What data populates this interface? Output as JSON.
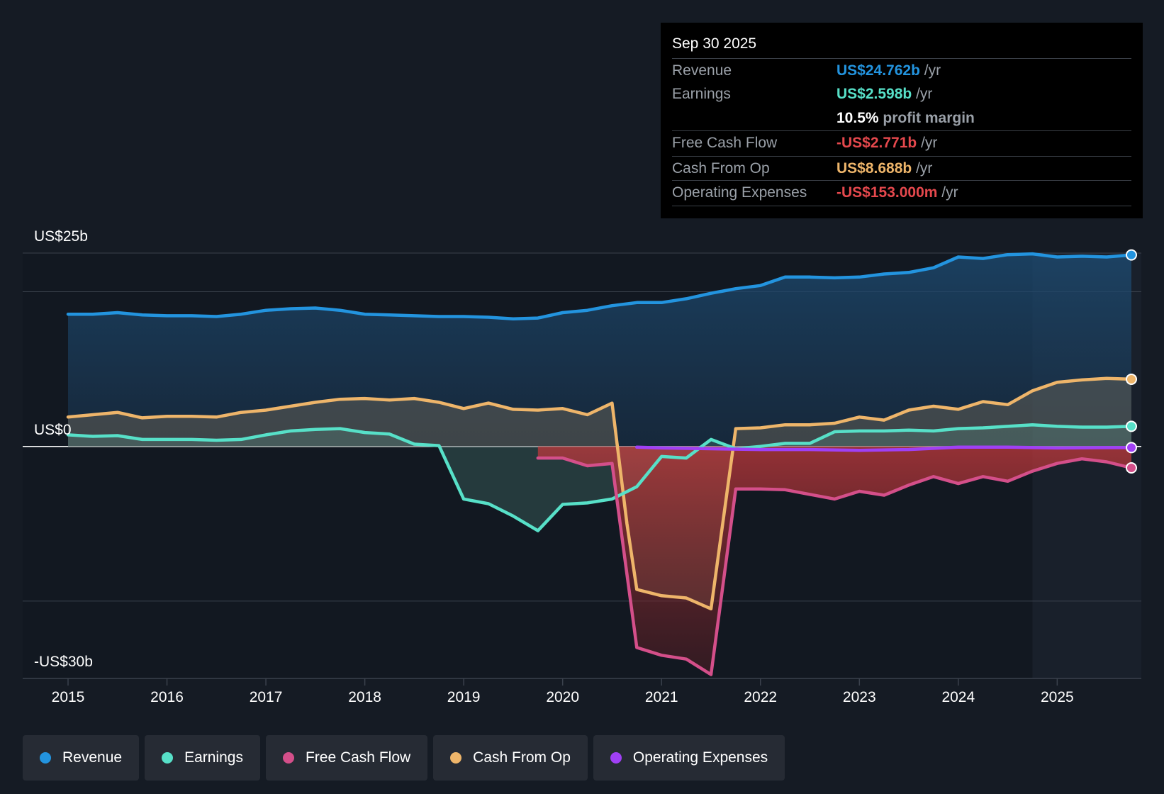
{
  "chart_data": {
    "type": "line",
    "title": "",
    "y_axis": {
      "top_label": "US$25b",
      "zero_label": "US$0",
      "bottom_label": "-US$30b",
      "ylim": [
        -30,
        25
      ]
    },
    "x_ticks": [
      "2015",
      "2016",
      "2017",
      "2018",
      "2019",
      "2020",
      "2021",
      "2022",
      "2023",
      "2024",
      "2025"
    ],
    "xlim": [
      2014.55,
      2025.75
    ],
    "forecast_start": 2024.75,
    "series": [
      {
        "name": "Revenue",
        "key": "revenue",
        "color": "#2394df",
        "x": [
          2015.0,
          2015.25,
          2015.5,
          2015.75,
          2016.0,
          2016.25,
          2016.5,
          2016.75,
          2017.0,
          2017.25,
          2017.5,
          2017.75,
          2018.0,
          2018.25,
          2018.5,
          2018.75,
          2019.0,
          2019.25,
          2019.5,
          2019.75,
          2020.0,
          2020.25,
          2020.5,
          2020.75,
          2021.0,
          2021.25,
          2021.5,
          2021.75,
          2022.0,
          2022.25,
          2022.5,
          2022.75,
          2023.0,
          2023.25,
          2023.5,
          2023.75,
          2024.0,
          2024.25,
          2024.5,
          2024.75,
          2025.0,
          2025.25,
          2025.5,
          2025.75
        ],
        "y": [
          17.1,
          17.1,
          17.3,
          17.0,
          16.9,
          16.9,
          16.8,
          17.1,
          17.6,
          17.8,
          17.9,
          17.6,
          17.1,
          17.0,
          16.9,
          16.8,
          16.8,
          16.7,
          16.5,
          16.6,
          17.3,
          17.6,
          18.2,
          18.6,
          18.6,
          19.1,
          19.8,
          20.4,
          20.8,
          21.9,
          21.9,
          21.8,
          21.9,
          22.3,
          22.5,
          23.1,
          24.5,
          24.3,
          24.8,
          24.9,
          24.5,
          24.6,
          24.5,
          24.762
        ]
      },
      {
        "name": "Earnings",
        "key": "earnings",
        "color": "#57e0c8",
        "x": [
          2015.0,
          2015.25,
          2015.5,
          2015.75,
          2016.0,
          2016.25,
          2016.5,
          2016.75,
          2017.0,
          2017.25,
          2017.5,
          2017.75,
          2018.0,
          2018.25,
          2018.5,
          2018.75,
          2019.0,
          2019.25,
          2019.5,
          2019.75,
          2020.0,
          2020.25,
          2020.5,
          2020.75,
          2021.0,
          2021.25,
          2021.5,
          2021.75,
          2022.0,
          2022.25,
          2022.5,
          2022.75,
          2023.0,
          2023.25,
          2023.5,
          2023.75,
          2024.0,
          2024.25,
          2024.5,
          2024.75,
          2025.0,
          2025.25,
          2025.5,
          2025.75
        ],
        "y": [
          1.5,
          1.3,
          1.4,
          0.9,
          0.9,
          0.9,
          0.8,
          0.9,
          1.5,
          2.0,
          2.2,
          2.3,
          1.8,
          1.6,
          0.3,
          0.1,
          -6.8,
          -7.4,
          -9.0,
          -10.9,
          -7.5,
          -7.3,
          -6.8,
          -5.2,
          -1.3,
          -1.5,
          0.9,
          -0.3,
          0.0,
          0.4,
          0.4,
          1.9,
          2.0,
          2.0,
          2.1,
          2.0,
          2.3,
          2.4,
          2.6,
          2.8,
          2.6,
          2.5,
          2.5,
          2.598
        ]
      },
      {
        "name": "Free Cash Flow",
        "key": "fcf",
        "color": "#d44f8a",
        "x": [
          2019.75,
          2020.0,
          2020.25,
          2020.5,
          2020.75,
          2021.0,
          2021.25,
          2021.5,
          2021.75,
          2022.0,
          2022.25,
          2022.5,
          2022.75,
          2023.0,
          2023.25,
          2023.5,
          2023.75,
          2024.0,
          2024.25,
          2024.5,
          2024.75,
          2025.0,
          2025.25,
          2025.5,
          2025.75
        ],
        "y": [
          -1.5,
          -1.5,
          -2.5,
          -2.2,
          -26.0,
          -27.0,
          -27.5,
          -29.5,
          -5.5,
          -5.5,
          -5.6,
          -6.2,
          -6.8,
          -5.8,
          -6.3,
          -5.0,
          -3.9,
          -4.8,
          -3.9,
          -4.5,
          -3.2,
          -2.2,
          -1.6,
          -2.0,
          -2.771
        ]
      },
      {
        "name": "Cash From Op",
        "key": "cfo",
        "color": "#eeb56a",
        "x": [
          2015.0,
          2015.25,
          2015.5,
          2015.75,
          2016.0,
          2016.25,
          2016.5,
          2016.75,
          2017.0,
          2017.25,
          2017.5,
          2017.75,
          2018.0,
          2018.25,
          2018.5,
          2018.75,
          2019.0,
          2019.25,
          2019.5,
          2019.75,
          2020.0,
          2020.25,
          2020.5,
          2020.65,
          2020.75,
          2021.0,
          2021.25,
          2021.5,
          2021.75,
          2022.0,
          2022.25,
          2022.5,
          2022.75,
          2023.0,
          2023.25,
          2023.5,
          2023.75,
          2024.0,
          2024.25,
          2024.5,
          2024.75,
          2025.0,
          2025.25,
          2025.5,
          2025.75
        ],
        "y": [
          3.8,
          4.1,
          4.4,
          3.7,
          3.9,
          3.9,
          3.8,
          4.4,
          4.7,
          5.2,
          5.7,
          6.1,
          6.2,
          6.0,
          6.2,
          5.7,
          4.9,
          5.6,
          4.8,
          4.7,
          4.9,
          4.1,
          5.6,
          -10.0,
          -18.5,
          -19.3,
          -19.6,
          -21.0,
          2.3,
          2.4,
          2.8,
          2.8,
          3.0,
          3.8,
          3.4,
          4.7,
          5.2,
          4.8,
          5.8,
          5.4,
          7.2,
          8.3,
          8.6,
          8.8,
          8.688
        ]
      },
      {
        "name": "Operating Expenses",
        "key": "opex",
        "color": "#a040f5",
        "x": [
          2020.75,
          2021.0,
          2021.5,
          2022.0,
          2022.5,
          2023.0,
          2023.5,
          2024.0,
          2024.5,
          2025.0,
          2025.5,
          2025.75
        ],
        "y": [
          -0.1,
          -0.2,
          -0.3,
          -0.4,
          -0.4,
          -0.5,
          -0.4,
          -0.1,
          -0.1,
          -0.2,
          -0.15,
          -0.153
        ]
      }
    ],
    "tooltip": {
      "date": "Sep 30 2025",
      "revenue_label": "Revenue",
      "revenue_value": "US$24.762b",
      "revenue_unit": "/yr",
      "earnings_label": "Earnings",
      "earnings_value": "US$2.598b",
      "earnings_unit": "/yr",
      "margin_value": "10.5%",
      "margin_text": "profit margin",
      "fcf_label": "Free Cash Flow",
      "fcf_value": "-US$2.771b",
      "fcf_unit": "/yr",
      "cfo_label": "Cash From Op",
      "cfo_value": "US$8.688b",
      "cfo_unit": "/yr",
      "opex_label": "Operating Expenses",
      "opex_value": "-US$153.000m",
      "opex_unit": "/yr"
    },
    "legend": [
      {
        "label": "Revenue",
        "color": "#2394df"
      },
      {
        "label": "Earnings",
        "color": "#57e0c8"
      },
      {
        "label": "Free Cash Flow",
        "color": "#d44f8a"
      },
      {
        "label": "Cash From Op",
        "color": "#eeb56a"
      },
      {
        "label": "Operating Expenses",
        "color": "#a040f5"
      }
    ],
    "colors": {
      "negative_value": "#e5484d",
      "positive_value": "#ffffff"
    }
  }
}
